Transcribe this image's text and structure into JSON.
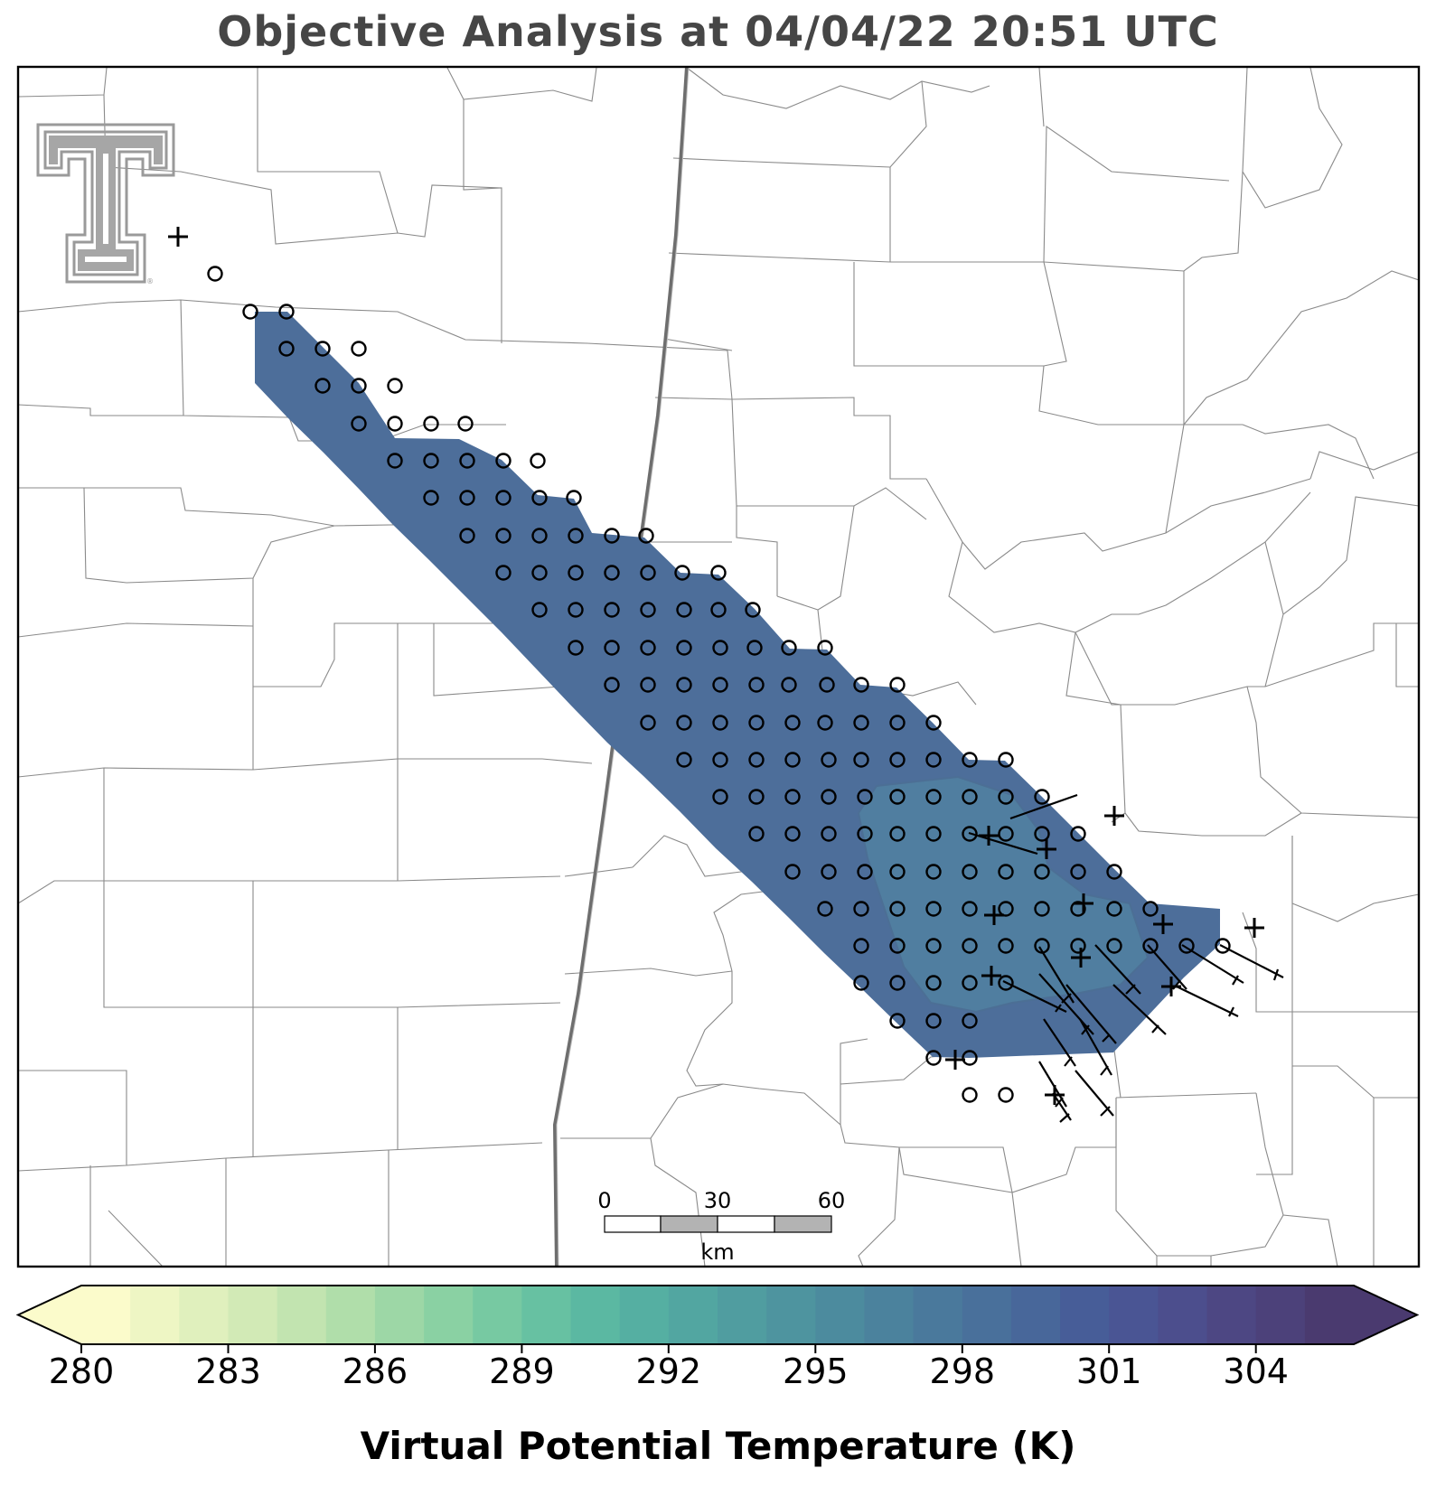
{
  "title": "Objective Analysis at 04/04/22 20:51 UTC",
  "colorbar": {
    "label": "Virtual Potential Temperature (K)",
    "min": 280,
    "max": 306,
    "step": 1,
    "tick_values": [
      280,
      283,
      286,
      289,
      292,
      295,
      298,
      301,
      304
    ],
    "tick_labels": [
      "280",
      "283",
      "286",
      "289",
      "292",
      "295",
      "298",
      "301",
      "304"
    ],
    "extend": "both",
    "colormap": "crest",
    "colors": [
      "#fbfbcb",
      "#eef6c4",
      "#e0f0bd",
      "#d2eab6",
      "#c2e4b0",
      "#b0deaa",
      "#9dd7a6",
      "#8ad1a3",
      "#77c9a2",
      "#67c1a2",
      "#5bb8a2",
      "#55afa2",
      "#52a6a1",
      "#509da0",
      "#4e949f",
      "#4c8b9e",
      "#4b829d",
      "#4a799c",
      "#49709b",
      "#48679a",
      "#475d98",
      "#4a5594",
      "#4c4e8d",
      "#4d4783",
      "#4c417a",
      "#4a3a6f"
    ]
  },
  "analysis_field": {
    "variable": "virtual potential temperature",
    "units": "K",
    "dominant_value_K": 300.5,
    "inner_contour_value_K": 299.5,
    "domain_shape": "northwest-southeast swath"
  },
  "scale_bar": {
    "labels": [
      "0",
      "30",
      "60"
    ],
    "unit": "km"
  },
  "legend_icons": {
    "grid_point": "circle-icon",
    "station": "plus-icon",
    "wind": "wind-barb-icon",
    "logo": "texas-tech-double-t-logo"
  },
  "colors": {
    "title": "#464646",
    "county_lines": "#8a8a8a",
    "state_line": "#6e6e6e",
    "field_fill": "#4d6e9a"
  }
}
